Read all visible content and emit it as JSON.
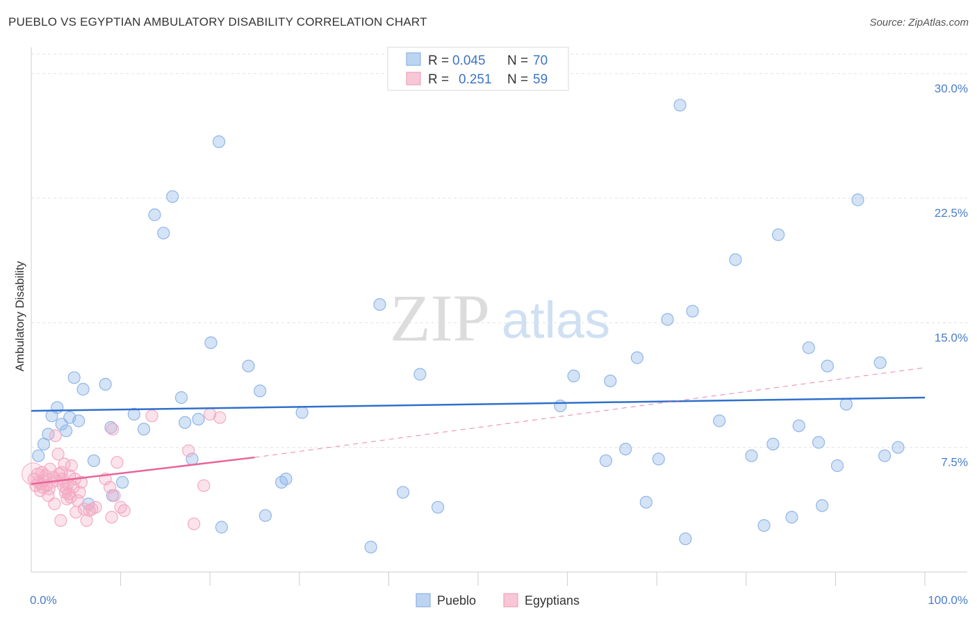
{
  "title": "PUEBLO VS EGYPTIAN AMBULATORY DISABILITY CORRELATION CHART",
  "source": "Source: ZipAtlas.com",
  "watermark": {
    "zip": "ZIP",
    "atlas": "atlas"
  },
  "chart_data": {
    "type": "scatter",
    "ylabel": "Ambulatory Disability",
    "xlim": [
      0,
      100
    ],
    "ylim": [
      0,
      31.5
    ],
    "x_tick_labels": [
      {
        "value": 0,
        "label": "0.0%"
      },
      {
        "value": 100,
        "label": "100.0%"
      }
    ],
    "y_tick_labels": [
      {
        "value": 7.5,
        "label": "7.5%"
      },
      {
        "value": 15.0,
        "label": "15.0%"
      },
      {
        "value": 22.5,
        "label": "22.5%"
      },
      {
        "value": 30.0,
        "label": "30.0%"
      }
    ],
    "legend": {
      "rows": [
        {
          "r_label": "R =",
          "r_value": "0.045",
          "n_label": "N =",
          "n_value": "70"
        },
        {
          "r_label": "R =",
          "r_value": "0.251",
          "n_label": "N =",
          "n_value": "59"
        }
      ]
    },
    "series": [
      {
        "name": "Pueblo",
        "color": "#8fb6e8",
        "line_color": "#2f6fcc",
        "trend": {
          "x": [
            0,
            100
          ],
          "y": [
            9.7,
            10.5
          ],
          "dashed_extension": false
        },
        "points": [
          [
            0.8,
            7.0
          ],
          [
            1.4,
            7.7
          ],
          [
            1.9,
            8.3
          ],
          [
            2.3,
            9.4
          ],
          [
            2.9,
            9.9
          ],
          [
            3.4,
            8.9
          ],
          [
            3.9,
            8.5
          ],
          [
            4.3,
            9.3
          ],
          [
            4.8,
            11.7
          ],
          [
            5.3,
            9.1
          ],
          [
            5.8,
            11.0
          ],
          [
            6.4,
            4.1
          ],
          [
            7.0,
            6.7
          ],
          [
            8.3,
            11.3
          ],
          [
            8.9,
            8.7
          ],
          [
            9.1,
            4.6
          ],
          [
            10.2,
            5.4
          ],
          [
            11.5,
            9.5
          ],
          [
            12.6,
            8.6
          ],
          [
            13.8,
            21.5
          ],
          [
            14.8,
            20.4
          ],
          [
            15.8,
            22.6
          ],
          [
            16.8,
            10.5
          ],
          [
            17.2,
            9.0
          ],
          [
            18.0,
            6.8
          ],
          [
            18.7,
            9.2
          ],
          [
            20.1,
            13.8
          ],
          [
            21.0,
            25.9
          ],
          [
            21.3,
            2.7
          ],
          [
            24.3,
            12.4
          ],
          [
            25.6,
            10.9
          ],
          [
            26.2,
            3.4
          ],
          [
            28.0,
            5.4
          ],
          [
            28.5,
            5.6
          ],
          [
            30.3,
            9.6
          ],
          [
            38.0,
            1.5
          ],
          [
            39.0,
            16.1
          ],
          [
            41.6,
            4.8
          ],
          [
            43.5,
            11.9
          ],
          [
            45.5,
            3.9
          ],
          [
            59.2,
            10.0
          ],
          [
            60.7,
            11.8
          ],
          [
            64.3,
            6.7
          ],
          [
            64.8,
            11.5
          ],
          [
            66.5,
            7.4
          ],
          [
            67.8,
            12.9
          ],
          [
            68.8,
            4.2
          ],
          [
            70.2,
            6.8
          ],
          [
            71.2,
            15.2
          ],
          [
            72.6,
            28.1
          ],
          [
            73.2,
            2.0
          ],
          [
            74.0,
            15.7
          ],
          [
            77.0,
            9.1
          ],
          [
            78.8,
            18.8
          ],
          [
            80.6,
            7.0
          ],
          [
            82.0,
            2.8
          ],
          [
            83.0,
            7.7
          ],
          [
            83.6,
            20.3
          ],
          [
            85.1,
            3.3
          ],
          [
            85.9,
            8.8
          ],
          [
            87.0,
            13.5
          ],
          [
            88.1,
            7.8
          ],
          [
            88.5,
            4.0
          ],
          [
            89.1,
            12.4
          ],
          [
            90.2,
            6.4
          ],
          [
            91.2,
            10.1
          ],
          [
            92.5,
            22.4
          ],
          [
            95.0,
            12.6
          ],
          [
            95.5,
            7.0
          ],
          [
            97.0,
            7.5
          ]
        ]
      },
      {
        "name": "Egyptians",
        "color": "#f4a9c2",
        "line_color": "#e8649a",
        "trend": {
          "x": [
            0,
            25
          ],
          "y": [
            5.3,
            6.9
          ],
          "dashed_extension": true,
          "dashed_to_x": 100,
          "dashed_to_y": 12.3
        },
        "points": [
          [
            0.3,
            5.6
          ],
          [
            0.5,
            5.2
          ],
          [
            0.7,
            5.9
          ],
          [
            0.8,
            5.4
          ],
          [
            1.0,
            4.9
          ],
          [
            1.1,
            5.3
          ],
          [
            1.2,
            6.0
          ],
          [
            1.3,
            5.1
          ],
          [
            1.4,
            5.5
          ],
          [
            1.6,
            5.8
          ],
          [
            1.7,
            5.2
          ],
          [
            1.9,
            4.6
          ],
          [
            2.0,
            5.0
          ],
          [
            2.1,
            6.2
          ],
          [
            2.3,
            5.4
          ],
          [
            2.5,
            5.7
          ],
          [
            2.6,
            4.1
          ],
          [
            2.7,
            8.2
          ],
          [
            2.9,
            5.5
          ],
          [
            3.0,
            7.1
          ],
          [
            3.1,
            5.9
          ],
          [
            3.3,
            3.1
          ],
          [
            3.4,
            6.0
          ],
          [
            3.5,
            5.6
          ],
          [
            3.6,
            5.2
          ],
          [
            3.7,
            6.5
          ],
          [
            3.8,
            4.8
          ],
          [
            3.9,
            5.0
          ],
          [
            4.0,
            4.4
          ],
          [
            4.1,
            5.3
          ],
          [
            4.2,
            4.7
          ],
          [
            4.3,
            5.8
          ],
          [
            4.4,
            4.5
          ],
          [
            4.5,
            6.4
          ],
          [
            4.7,
            5.1
          ],
          [
            4.9,
            5.6
          ],
          [
            5.0,
            3.6
          ],
          [
            5.2,
            4.3
          ],
          [
            5.4,
            4.8
          ],
          [
            5.6,
            5.4
          ],
          [
            5.9,
            3.8
          ],
          [
            6.2,
            3.1
          ],
          [
            6.5,
            3.7
          ],
          [
            6.8,
            3.8
          ],
          [
            7.2,
            3.9
          ],
          [
            8.3,
            5.6
          ],
          [
            8.8,
            5.1
          ],
          [
            9.0,
            3.3
          ],
          [
            9.1,
            8.6
          ],
          [
            9.3,
            4.6
          ],
          [
            9.6,
            6.6
          ],
          [
            10.0,
            3.9
          ],
          [
            10.4,
            3.7
          ],
          [
            13.5,
            9.4
          ],
          [
            17.6,
            7.3
          ],
          [
            18.2,
            2.9
          ],
          [
            19.3,
            5.2
          ],
          [
            20.0,
            9.5
          ],
          [
            21.1,
            9.3
          ]
        ]
      }
    ]
  }
}
